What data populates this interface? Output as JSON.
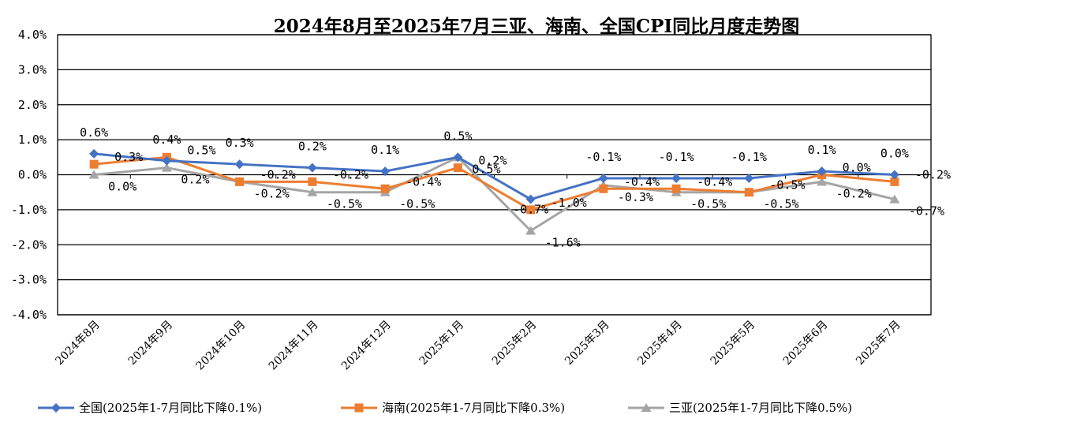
{
  "chart_data": {
    "type": "line",
    "title": "2024年8月至2025年7月三亚、海南、全国CPI同比月度走势图",
    "categories": [
      "2024年8月",
      "2024年9月",
      "2024年10月",
      "2024年11月",
      "2024年12月",
      "2025年1月",
      "2025年2月",
      "2025年3月",
      "2025年4月",
      "2025年5月",
      "2025年6月",
      "2025年7月"
    ],
    "yticks": [
      "-4.0%",
      "-3.0%",
      "-2.0%",
      "-1.0%",
      "0.0%",
      "1.0%",
      "2.0%",
      "3.0%",
      "4.0%"
    ],
    "ylim": [
      -4,
      4
    ],
    "grid": true,
    "legend_position": "bottom",
    "series": [
      {
        "name": "全国(2025年1-7月同比下降0.1%)",
        "color": "#4472C4",
        "marker": "diamond",
        "values": [
          0.6,
          0.4,
          0.3,
          0.2,
          0.1,
          0.5,
          -0.7,
          -0.1,
          -0.1,
          -0.1,
          0.1,
          0.0
        ],
        "labels": [
          "0.6%",
          "0.4%",
          "0.3%",
          "0.2%",
          "0.1%",
          "0.5%",
          "-0.7%",
          "-0.1%",
          "-0.1%",
          "-0.1%",
          "0.1%",
          "0.0%"
        ]
      },
      {
        "name": "海南(2025年1-7月同比下降0.3%)",
        "color": "#ED7D31",
        "marker": "square",
        "values": [
          0.3,
          0.5,
          -0.2,
          -0.2,
          -0.4,
          0.2,
          -1.0,
          -0.4,
          -0.4,
          -0.5,
          0.0,
          -0.2
        ],
        "labels": [
          "0.3%",
          "0.5%",
          "-0.2%",
          "-0.2%",
          "-0.4%",
          "0.2%",
          "-1.0%",
          "-0.4%",
          "-0.4%",
          "-0.5%",
          "0.0%",
          "-0.2%"
        ]
      },
      {
        "name": "三亚(2025年1-7月同比下降0.5%)",
        "color": "#A5A5A5",
        "marker": "triangle",
        "values": [
          0.0,
          0.2,
          -0.2,
          -0.5,
          -0.5,
          0.5,
          -1.6,
          -0.3,
          -0.5,
          -0.5,
          -0.2,
          -0.7
        ],
        "labels": [
          "0.0%",
          "0.2%",
          "-0.2%",
          "-0.5%",
          "-0.5%",
          "0.5%",
          "-1.6%",
          "-0.3%",
          "-0.5%",
          "-0.5%",
          "-0.2%",
          "-0.7%"
        ]
      }
    ]
  }
}
